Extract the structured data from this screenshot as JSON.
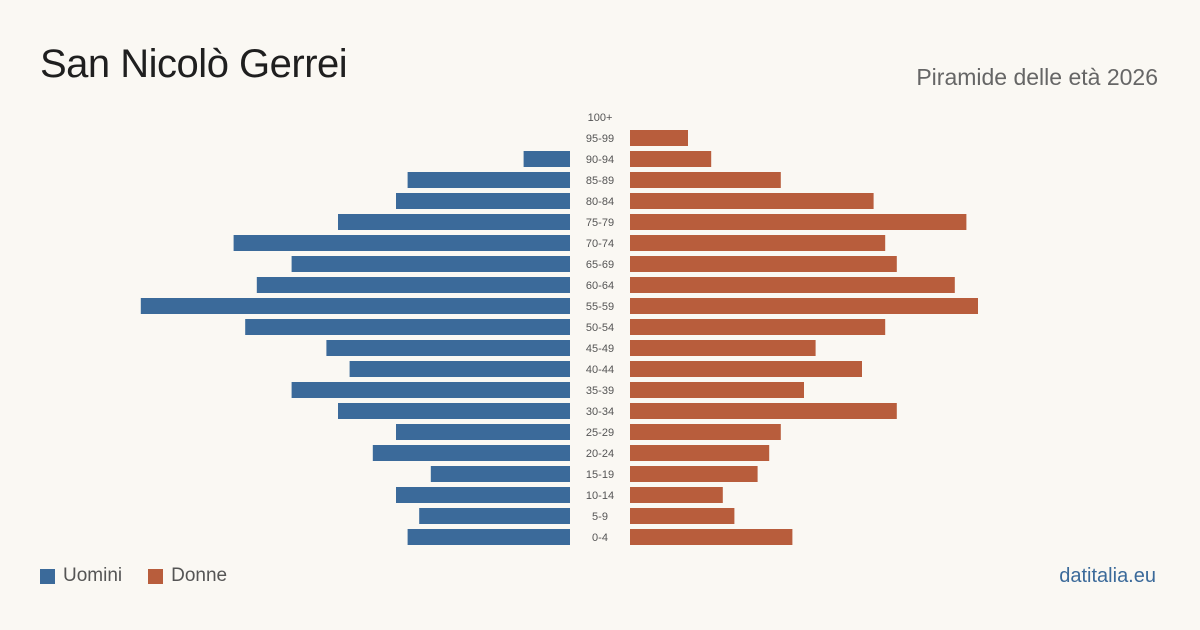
{
  "header": {
    "title": "San Nicolò Gerrei",
    "subtitle": "Piramide delle età 2026"
  },
  "legend": {
    "men_label": "Uomini",
    "women_label": "Donne"
  },
  "brand": "datitalia.eu",
  "colors": {
    "men": "#3b6a9a",
    "women": "#b85d3c",
    "background": "#faf8f3",
    "tick_text": "#555555"
  },
  "chart_data": {
    "type": "bar",
    "orientation": "horizontal-population-pyramid",
    "categories": [
      "100+",
      "95-99",
      "90-94",
      "85-89",
      "80-84",
      "75-79",
      "70-74",
      "65-69",
      "60-64",
      "55-59",
      "50-54",
      "45-49",
      "40-44",
      "35-39",
      "30-34",
      "25-29",
      "20-24",
      "15-19",
      "10-14",
      "5-9",
      "0-4"
    ],
    "series": [
      {
        "name": "Uomini",
        "values": [
          0,
          0,
          4,
          14,
          15,
          20,
          29,
          24,
          27,
          37,
          28,
          21,
          19,
          24,
          20,
          15,
          17,
          12,
          15,
          13,
          14
        ]
      },
      {
        "name": "Donne",
        "values": [
          0,
          5,
          7,
          13,
          21,
          29,
          22,
          23,
          28,
          30,
          22,
          16,
          20,
          15,
          23,
          13,
          12,
          11,
          8,
          9,
          14
        ]
      }
    ],
    "legend_position": "bottom-left",
    "grid": false
  }
}
